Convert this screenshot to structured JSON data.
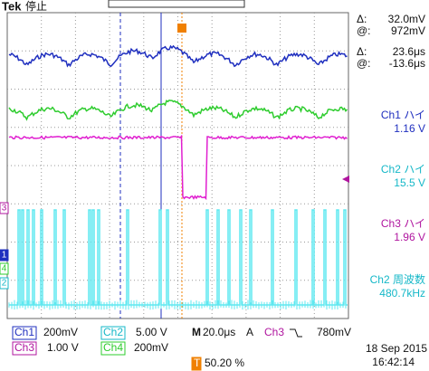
{
  "header": {
    "brand": "Tek",
    "status": "停止"
  },
  "cursors": [
    {
      "label": "Δ:",
      "value": "32.0mV"
    },
    {
      "label": "@:",
      "value": "972mV"
    },
    {
      "label": "Δ:",
      "value": "23.6μs"
    },
    {
      "label": "@:",
      "value": "-13.6μs"
    }
  ],
  "measurements": [
    {
      "name": "Ch1 ハイ",
      "value": "1.16 V",
      "color": "#1f2fbf"
    },
    {
      "name": "Ch2 ハイ",
      "value": "15.5 V",
      "color": "#16b8c8"
    },
    {
      "name": "Ch3 ハイ",
      "value": "1.96 V",
      "color": "#b0159f"
    },
    {
      "name": "Ch2 周波数",
      "value": "480.7kHz",
      "color": "#16b8c8"
    }
  ],
  "markers": [
    "3",
    "1",
    "4",
    "2"
  ],
  "settings": {
    "ch1": {
      "label": "Ch1",
      "scale": "200mV"
    },
    "ch2": {
      "label": "Ch2",
      "scale": "5.00 V"
    },
    "ch3": {
      "label": "Ch3",
      "scale": "1.00 V"
    },
    "ch4": {
      "label": "Ch4",
      "scale": "200mV"
    },
    "timebase": {
      "label": "M",
      "scale": "20.0μs"
    },
    "trigger": {
      "label": "A",
      "source": "Ch3",
      "level": "780mV"
    },
    "position": {
      "label": "T",
      "value": "50.20 %"
    }
  },
  "date": "18 Sep 2015",
  "time": "16:42:14"
}
